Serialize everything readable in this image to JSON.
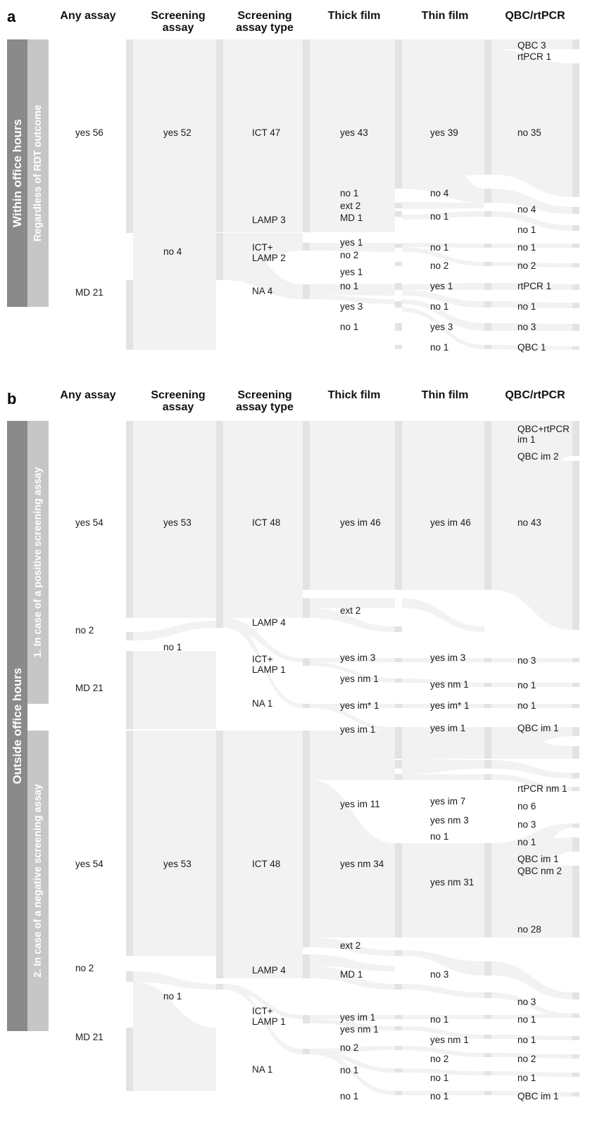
{
  "colors": {
    "flow": "#f2f2f2",
    "node": "#e3e3e3",
    "side_dark": "#8a8a8a",
    "side_light": "#c6c6c6",
    "text": "#1a1a1a"
  },
  "columns": [
    "Any assay",
    "Screening\nassay",
    "Screening\nassay type",
    "Thick film",
    "Thin film",
    "QBC/rtPCR"
  ],
  "panels": [
    {
      "letter": "a",
      "side_labels": [
        "Within office hours",
        "Regardless of RDT outcome"
      ],
      "labels": [
        [
          "yes 56",
          "MD 21"
        ],
        [
          "yes 52",
          "no 4"
        ],
        [
          "ICT 47",
          "LAMP 3",
          "ICT+\nLAMP 2",
          "NA 4"
        ],
        [
          "yes 43",
          "no 1",
          "ext 2",
          "MD 1",
          "yes 1",
          "no 2",
          "yes 1",
          "no 1",
          "yes 3",
          "no 1"
        ],
        [
          "yes 39",
          "no 4",
          "no 1",
          "no 1",
          "no 2",
          "yes 1",
          "no 1",
          "yes 3",
          "no 1"
        ],
        [
          "QBC 3",
          "rtPCR 1",
          "no 35",
          "no 4",
          "no 1",
          "no 1",
          "no 2",
          "rtPCR 1",
          "no 1",
          "no 3",
          "QBC 1"
        ]
      ]
    },
    {
      "letter": "b",
      "side_labels": [
        "Outside office hours",
        "1. In case of a positive screening assay",
        "2. In case of a negative screening assay"
      ],
      "labels": [
        [
          "yes 54",
          "no 2",
          "MD 21",
          "yes 54",
          "no 2",
          "MD 21"
        ],
        [
          "yes 53",
          "no 1",
          "yes 53",
          "no 1"
        ],
        [
          "ICT 48",
          "LAMP 4",
          "ICT+\nLAMP 1",
          "NA 1",
          "ICT 48",
          "LAMP 4",
          "ICT+\nLAMP 1",
          "NA 1"
        ],
        [
          "yes im 46",
          "ext 2",
          "yes im 3",
          "yes nm 1",
          "yes im* 1",
          "yes im 1",
          "yes im 11",
          "yes nm 34",
          "ext 2",
          "MD 1",
          "yes im 1",
          "yes nm 1",
          "no 2",
          "no 1",
          "no 1"
        ],
        [
          "yes im 46",
          "yes im 3",
          "yes nm 1",
          "yes im* 1",
          "yes im 1",
          "yes im 7",
          "yes nm 3",
          "no 1",
          "yes nm 31",
          "no 3",
          "no 1",
          "yes nm 1",
          "no 2",
          "no 1",
          "no 1"
        ],
        [
          "QBC+rtPCR\nim 1",
          "QBC im 2",
          "no 43",
          "no 3",
          "no 1",
          "no 1",
          "QBC im 1",
          "rtPCR nm 1",
          "no 6",
          "no 3",
          "no 1",
          "QBC im 1",
          "QBC nm 2",
          "no 28",
          "no 3",
          "no 1",
          "no 1",
          "no 2",
          "no 1",
          "QBC im 1"
        ]
      ]
    }
  ]
}
